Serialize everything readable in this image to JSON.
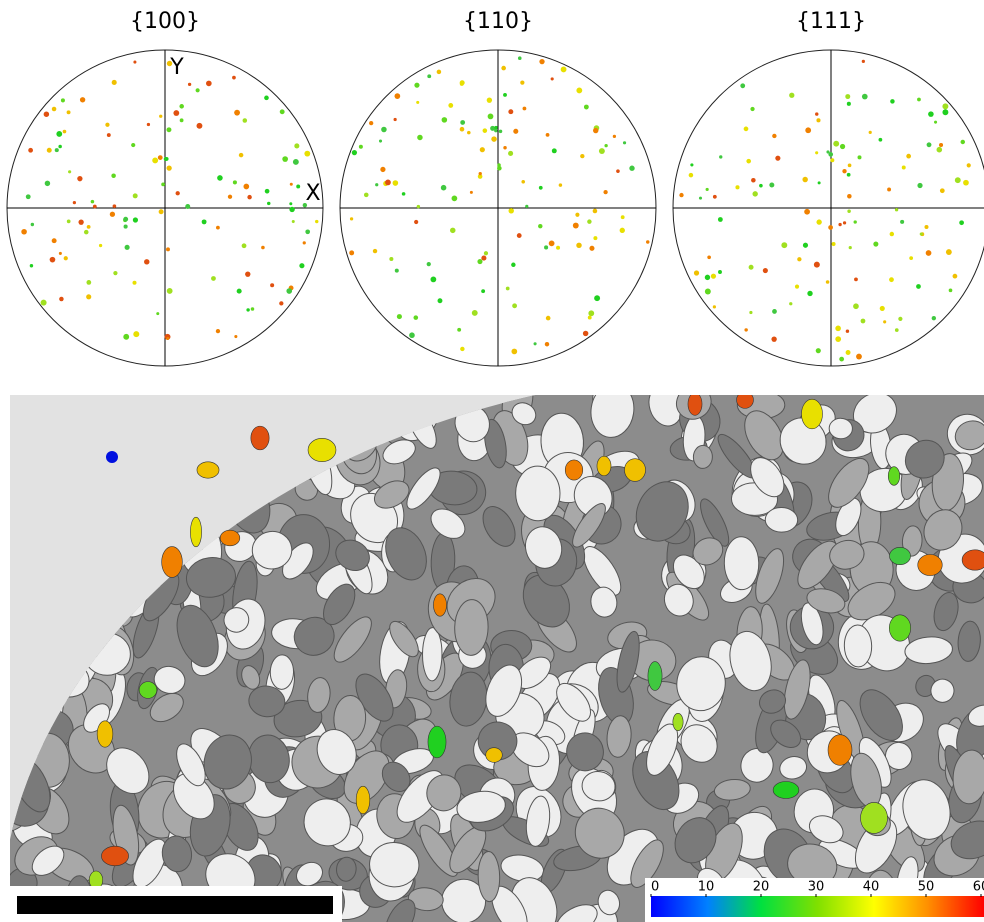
{
  "pole_figures": [
    {
      "title": "{100}",
      "x_label": "X",
      "y_label": "Y"
    },
    {
      "title": "{110}"
    },
    {
      "title": "{111}"
    }
  ],
  "colorbar": {
    "lim": [
      0,
      60
    ],
    "ticks": [
      0,
      10,
      20,
      30,
      40,
      50,
      60
    ]
  }
}
